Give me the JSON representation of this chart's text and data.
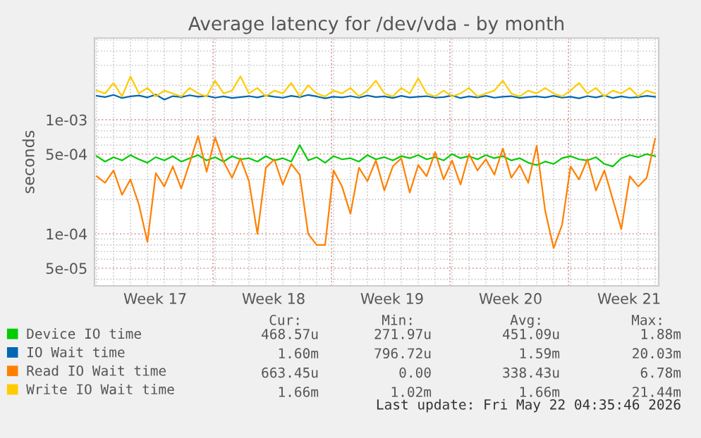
{
  "chart_data": {
    "type": "line",
    "title": "Average latency for /dev/vda - by month",
    "ylabel": "seconds",
    "log": "y",
    "grid": true,
    "legend": "bottom",
    "marker": "none",
    "line_style": "solid",
    "xlim": [
      "2026-04-18T21:00",
      "2026-05-22T05:00"
    ],
    "xticks": [
      {
        "value": "2026-04-22T11:00",
        "label": "Week 17"
      },
      {
        "value": "2026-04-25T21:00",
        "label": null
      },
      {
        "value": "2026-04-29T11:00",
        "label": "Week 18"
      },
      {
        "value": "2026-05-02T21:00",
        "label": null
      },
      {
        "value": "2026-05-06T11:00",
        "label": "Week 19"
      },
      {
        "value": "2026-05-09T21:00",
        "label": null
      },
      {
        "value": "2026-05-13T11:00",
        "label": "Week 20"
      },
      {
        "value": "2026-05-16T21:00",
        "label": null
      },
      {
        "value": "2026-05-20T11:00",
        "label": "Week 21"
      }
    ],
    "ylim": [
      3.5e-05,
      0.0052
    ],
    "yticks": [
      {
        "value": 5e-05,
        "label": "5e-05"
      },
      {
        "value": 0.0001,
        "label": "1e-04"
      },
      {
        "value": 0.0005,
        "label": "5e-04"
      },
      {
        "value": 0.001,
        "label": "1e-03"
      }
    ],
    "x": [
      "2026-04-19T00:00",
      "2026-04-19T12:00",
      "2026-04-20T00:00",
      "2026-04-20T12:00",
      "2026-04-21T00:00",
      "2026-04-21T12:00",
      "2026-04-22T00:00",
      "2026-04-22T12:00",
      "2026-04-23T00:00",
      "2026-04-23T12:00",
      "2026-04-24T00:00",
      "2026-04-24T12:00",
      "2026-04-25T00:00",
      "2026-04-25T12:00",
      "2026-04-26T00:00",
      "2026-04-26T12:00",
      "2026-04-27T00:00",
      "2026-04-27T12:00",
      "2026-04-28T00:00",
      "2026-04-28T12:00",
      "2026-04-29T00:00",
      "2026-04-29T12:00",
      "2026-04-30T00:00",
      "2026-04-30T12:00",
      "2026-05-01T00:00",
      "2026-05-01T12:00",
      "2026-05-02T00:00",
      "2026-05-02T12:00",
      "2026-05-03T00:00",
      "2026-05-03T12:00",
      "2026-05-04T00:00",
      "2026-05-04T12:00",
      "2026-05-05T00:00",
      "2026-05-05T12:00",
      "2026-05-06T00:00",
      "2026-05-06T12:00",
      "2026-05-07T00:00",
      "2026-05-07T12:00",
      "2026-05-08T00:00",
      "2026-05-08T12:00",
      "2026-05-09T00:00",
      "2026-05-09T12:00",
      "2026-05-10T00:00",
      "2026-05-10T12:00",
      "2026-05-11T00:00",
      "2026-05-11T12:00",
      "2026-05-12T00:00",
      "2026-05-12T12:00",
      "2026-05-13T00:00",
      "2026-05-13T12:00",
      "2026-05-14T00:00",
      "2026-05-14T12:00",
      "2026-05-15T00:00",
      "2026-05-15T12:00",
      "2026-05-16T00:00",
      "2026-05-16T12:00",
      "2026-05-17T00:00",
      "2026-05-17T12:00",
      "2026-05-18T00:00",
      "2026-05-18T12:00",
      "2026-05-19T00:00",
      "2026-05-19T12:00",
      "2026-05-20T00:00",
      "2026-05-20T12:00",
      "2026-05-21T00:00",
      "2026-05-21T12:00",
      "2026-05-22T00:00"
    ],
    "series": [
      {
        "name": "Device IO time",
        "color": "#00cc00",
        "values": [
          0.00048,
          0.00043,
          0.00047,
          0.00044,
          0.00049,
          0.00045,
          0.00042,
          0.00047,
          0.00044,
          0.00048,
          0.00043,
          0.00046,
          0.00049,
          0.00044,
          0.00047,
          0.00043,
          0.00048,
          0.00045,
          0.00046,
          0.00043,
          0.00048,
          0.00044,
          0.00046,
          0.00043,
          0.0006,
          0.00044,
          0.00047,
          0.00042,
          0.00048,
          0.00045,
          0.00046,
          0.00043,
          0.00049,
          0.00045,
          0.00047,
          0.00044,
          0.00048,
          0.00046,
          0.00049,
          0.00045,
          0.00047,
          0.00044,
          0.0005,
          0.00046,
          0.00048,
          0.00045,
          0.00049,
          0.00046,
          0.00048,
          0.00044,
          0.00046,
          0.00042,
          0.0004,
          0.00043,
          0.00041,
          0.00046,
          0.00048,
          0.00045,
          0.00044,
          0.00047,
          0.00041,
          0.00039,
          0.00046,
          0.00049,
          0.00047,
          0.0005,
          0.00048
        ]
      },
      {
        "name": "IO Wait time",
        "color": "#0066b3",
        "values": [
          0.00162,
          0.00158,
          0.00165,
          0.00155,
          0.0016,
          0.00163,
          0.00157,
          0.00166,
          0.0015,
          0.00161,
          0.00158,
          0.00164,
          0.00159,
          0.00162,
          0.00156,
          0.0016,
          0.00155,
          0.00158,
          0.00161,
          0.00157,
          0.00163,
          0.00159,
          0.00156,
          0.00162,
          0.00158,
          0.00165,
          0.0016,
          0.00154,
          0.00159,
          0.00157,
          0.00161,
          0.00156,
          0.00163,
          0.00158,
          0.0016,
          0.00155,
          0.00162,
          0.00157,
          0.00159,
          0.00161,
          0.00156,
          0.00158,
          0.00163,
          0.00155,
          0.0016,
          0.00157,
          0.00162,
          0.00156,
          0.00159,
          0.00161,
          0.00155,
          0.00158,
          0.0016,
          0.00157,
          0.00162,
          0.00156,
          0.00159,
          0.00154,
          0.00161,
          0.00157,
          0.00163,
          0.00155,
          0.0016,
          0.00156,
          0.00158,
          0.00162,
          0.00159
        ]
      },
      {
        "name": "Read IO Wait time",
        "color": "#ff8000",
        "values": [
          0.00032,
          0.00028,
          0.00036,
          0.00022,
          0.0003,
          0.00018,
          8.5e-05,
          0.00034,
          0.00026,
          0.00039,
          0.00025,
          0.00042,
          0.00072,
          0.00035,
          0.0007,
          0.00043,
          0.00031,
          0.00046,
          0.00029,
          0.0001,
          0.00038,
          0.00045,
          0.00027,
          0.00041,
          0.00033,
          0.0001,
          8e-05,
          8e-05,
          0.00036,
          0.00026,
          0.00015,
          0.00038,
          0.00029,
          0.00044,
          0.00024,
          0.00039,
          0.00046,
          0.00023,
          0.0004,
          0.00032,
          0.00052,
          0.0003,
          0.00044,
          0.00027,
          0.0005,
          0.00036,
          0.00045,
          0.00033,
          0.00056,
          0.00031,
          0.0004,
          0.00028,
          0.00059,
          0.00016,
          7.5e-05,
          0.00012,
          0.00039,
          0.0003,
          0.00045,
          0.00024,
          0.00036,
          0.0002,
          0.00011,
          0.00032,
          0.00026,
          0.00031,
          0.00068
        ]
      },
      {
        "name": "Write IO Wait time",
        "color": "#ffcc00",
        "values": [
          0.0018,
          0.0017,
          0.0021,
          0.0016,
          0.0024,
          0.0017,
          0.0019,
          0.0016,
          0.0018,
          0.0017,
          0.0016,
          0.0019,
          0.0017,
          0.0016,
          0.0022,
          0.0017,
          0.0018,
          0.0024,
          0.0017,
          0.0019,
          0.0016,
          0.0018,
          0.0017,
          0.0021,
          0.0016,
          0.002,
          0.0017,
          0.0016,
          0.0018,
          0.0017,
          0.0019,
          0.0016,
          0.0018,
          0.0022,
          0.0017,
          0.0016,
          0.0019,
          0.0017,
          0.0023,
          0.0017,
          0.0016,
          0.0018,
          0.0016,
          0.0017,
          0.0019,
          0.0016,
          0.0017,
          0.0018,
          0.0022,
          0.0017,
          0.0016,
          0.0018,
          0.0017,
          0.0019,
          0.0017,
          0.0016,
          0.0018,
          0.0021,
          0.0017,
          0.0019,
          0.0016,
          0.0018,
          0.0017,
          0.0019,
          0.0016,
          0.0018,
          0.0017
        ]
      }
    ],
    "annotations": [
      "Cur:",
      "Min:",
      "Avg:",
      "Max:",
      "468.57u",
      "271.97u",
      "451.09u",
      "1.88m",
      "1.60m",
      "796.72u",
      "1.59m",
      "20.03m",
      "663.45u",
      "0.00",
      "338.43u",
      "6.78m",
      "1.66m",
      "1.02m",
      "1.66m",
      "21.44m",
      "Last update: Fri May 22 04:35:46 2026"
    ]
  }
}
